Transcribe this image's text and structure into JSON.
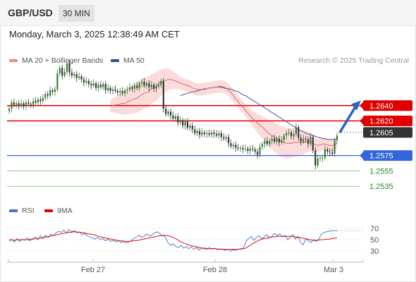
{
  "header": {
    "symbol": "GBP/USD",
    "timeframe": "30 MIN"
  },
  "date_text": "Monday, March 3, 2025 12:38:49 AM CET",
  "legend": {
    "ma20": "MA 20 + Bollinger Bands",
    "ma50": "MA 50",
    "copyright": "Research © 2025 Trading Central"
  },
  "rsi_legend": {
    "rsi": "RSI",
    "ma9": "9MA"
  },
  "colors": {
    "up": "#2e7d32",
    "down": "#333333",
    "ma20": "#e06666",
    "ma50": "#4a55a8",
    "band": "#fbd5d5",
    "resistance": "#e00000",
    "current": "#333333",
    "support_strong": "#3366dd",
    "support_weak": "#88cc88",
    "rsi": "#4472c4",
    "arrow": "#2c62c0"
  },
  "chart_data": [
    {
      "type": "candlestick",
      "x_labels": [
        "Feb 27",
        "Feb 28",
        "Mar 3"
      ],
      "ylim": [
        1.2515,
        1.2715
      ],
      "levels": [
        {
          "label": "1.2640",
          "value": 1.264,
          "style": "resistance"
        },
        {
          "label": "1.2620",
          "value": 1.262,
          "style": "resistance"
        },
        {
          "label": "1.2605",
          "value": 1.2605,
          "style": "current"
        },
        {
          "label": "1.2575",
          "value": 1.2575,
          "style": "support_strong"
        },
        {
          "label": "1.2555",
          "value": 1.2555,
          "style": "support_weak"
        },
        {
          "label": "1.2535",
          "value": 1.2535,
          "style": "support_weak"
        }
      ],
      "close": [
        1.2636,
        1.2644,
        1.2641,
        1.2643,
        1.264,
        1.2643,
        1.2639,
        1.2644,
        1.2642,
        1.2641,
        1.2646,
        1.2644,
        1.2648,
        1.2646,
        1.265,
        1.2655,
        1.2653,
        1.266,
        1.2658,
        1.2661,
        1.2682,
        1.2689,
        1.2679,
        1.2684,
        1.2695,
        1.2683,
        1.2679,
        1.2681,
        1.2676,
        1.2678,
        1.2674,
        1.267,
        1.2672,
        1.2668,
        1.2666,
        1.2669,
        1.2663,
        1.2667,
        1.2664,
        1.2668,
        1.266,
        1.2663,
        1.2659,
        1.2661,
        1.2659,
        1.2657,
        1.2659,
        1.2656,
        1.266,
        1.2661,
        1.2664,
        1.2662,
        1.2666,
        1.2663,
        1.2669,
        1.2671,
        1.2666,
        1.2669,
        1.2664,
        1.2667,
        1.2662,
        1.2665,
        1.2667,
        1.2672,
        1.2636,
        1.2629,
        1.2632,
        1.2627,
        1.2623,
        1.2626,
        1.2618,
        1.2621,
        1.2614,
        1.2619,
        1.2611,
        1.2614,
        1.2609,
        1.2604,
        1.2607,
        1.2602,
        1.2605,
        1.2603,
        1.2604,
        1.2602,
        1.2605,
        1.2603,
        1.2601,
        1.2604,
        1.2599,
        1.2597,
        1.2599,
        1.2591,
        1.2587,
        1.2589,
        1.2585,
        1.2584,
        1.2585,
        1.2583,
        1.2584,
        1.2581,
        1.2584,
        1.2583,
        1.258,
        1.2576,
        1.2586,
        1.259,
        1.2594,
        1.259,
        1.2594,
        1.2597,
        1.2593,
        1.2597,
        1.2592,
        1.2595,
        1.2601,
        1.2604,
        1.2605,
        1.26,
        1.2603,
        1.2612,
        1.2598,
        1.2593,
        1.2597,
        1.2596,
        1.259,
        1.2599,
        1.2582,
        1.2562,
        1.2571,
        1.2572,
        1.2572,
        1.2583,
        1.258,
        1.2579,
        1.2577,
        1.2595,
        1.2601
      ],
      "ma20": [
        1.2639,
        1.264,
        1.2641,
        1.2641,
        1.2642,
        1.2643,
        1.2643,
        1.2645,
        1.2646,
        1.2647,
        1.2649,
        1.265,
        1.2652,
        1.2654,
        1.2656,
        1.2657,
        1.2658,
        1.2662,
        1.2663,
        1.2665,
        1.2668,
        1.267,
        1.2672,
        1.2673,
        1.2674,
        1.2674,
        1.2673,
        1.2672,
        1.2671,
        1.2669,
        1.2668,
        1.2667,
        1.2666,
        1.2665,
        1.2663,
        1.2662,
        1.2661,
        1.2661,
        1.2661,
        1.2662,
        1.2662,
        1.2663,
        1.2663,
        1.2664,
        1.2664,
        1.2665,
        1.2665,
        1.2664,
        1.2663,
        1.266,
        1.2657,
        1.2653,
        1.2649,
        1.2645,
        1.2641,
        1.2638,
        1.2634,
        1.263,
        1.2627,
        1.2623,
        1.262,
        1.2617,
        1.2614,
        1.2612,
        1.2609,
        1.2606,
        1.2603,
        1.2601,
        1.2599,
        1.2597,
        1.2595,
        1.2593,
        1.2592,
        1.2591,
        1.2591,
        1.2591,
        1.2592,
        1.2592,
        1.2592,
        1.2592,
        1.2592,
        1.2593,
        1.2593,
        1.2593,
        1.2591,
        1.2589,
        1.2588,
        1.2589,
        1.259,
        1.259,
        1.2589,
        1.2588,
        1.2588,
        1.2589,
        1.2591
      ],
      "ma50": [
        1.2653,
        1.2654,
        1.2655,
        1.2656,
        1.2657,
        1.2658,
        1.2658,
        1.2659,
        1.266,
        1.2661,
        1.2661,
        1.2662,
        1.2663,
        1.2663,
        1.2664,
        1.2664,
        1.2664,
        1.2664,
        1.2663,
        1.2662,
        1.2662,
        1.2661,
        1.266,
        1.2659,
        1.2658,
        1.2656,
        1.2654,
        1.2653,
        1.2651,
        1.2649,
        1.2647,
        1.2645,
        1.2643,
        1.2641,
        1.2639,
        1.2637,
        1.2635,
        1.2633,
        1.2631,
        1.2629,
        1.2627,
        1.2625,
        1.2623,
        1.2621,
        1.2619,
        1.2617,
        1.2615,
        1.2613,
        1.2611,
        1.2609,
        1.2607,
        1.2606,
        1.2604,
        1.2603,
        1.2602,
        1.2601,
        1.26,
        1.2599,
        1.2598,
        1.2597,
        1.2597,
        1.2596,
        1.2596,
        1.2596,
        1.2596,
        1.2596
      ]
    },
    {
      "type": "line",
      "name": "RSI",
      "yticks": [
        70,
        50,
        30
      ],
      "ylim": [
        20,
        80
      ],
      "rsi": [
        48,
        50,
        46,
        52,
        47,
        51,
        49,
        53,
        48,
        52,
        55,
        50,
        57,
        52,
        58,
        54,
        60,
        57,
        62,
        65,
        63,
        67,
        62,
        68,
        64,
        66,
        62,
        64,
        59,
        61,
        57,
        55,
        53,
        51,
        54,
        50,
        52,
        48,
        51,
        47,
        49,
        46,
        48,
        45,
        47,
        44,
        46,
        49,
        52,
        55,
        58,
        54,
        57,
        60,
        56,
        59,
        62,
        64,
        60,
        58,
        55,
        45,
        40,
        43,
        38,
        36,
        40,
        35,
        38,
        34,
        37,
        33,
        36,
        32,
        35,
        34,
        33,
        36,
        33,
        35,
        32,
        34,
        33,
        31,
        33,
        30,
        32,
        31,
        33,
        34,
        35,
        47,
        52,
        56,
        49,
        54,
        57,
        51,
        55,
        59,
        53,
        56,
        61,
        57,
        60,
        55,
        58,
        50,
        54,
        59,
        51,
        56,
        45,
        41,
        52,
        48,
        45,
        50,
        47,
        51,
        60,
        63,
        64,
        65,
        66,
        66,
        66
      ],
      "ma9": [
        50,
        50,
        49,
        50,
        50,
        50,
        50,
        50,
        51,
        51,
        52,
        52,
        53,
        54,
        55,
        56,
        57,
        58,
        59,
        60,
        61,
        62,
        63,
        63,
        64,
        64,
        63,
        63,
        62,
        61,
        60,
        59,
        58,
        56,
        55,
        54,
        53,
        52,
        51,
        50,
        49,
        48,
        48,
        47,
        47,
        47,
        48,
        48,
        49,
        50,
        51,
        52,
        53,
        54,
        55,
        56,
        57,
        57,
        58,
        57,
        56,
        54,
        52,
        49,
        46,
        44,
        42,
        40,
        39,
        38,
        37,
        36,
        35,
        35,
        34,
        34,
        34,
        34,
        33,
        33,
        33,
        33,
        33,
        33,
        33,
        33,
        33,
        34,
        35,
        38,
        41,
        44,
        47,
        49,
        51,
        52,
        53,
        54,
        55,
        55,
        56,
        56,
        56,
        56,
        56,
        56,
        55,
        54,
        54,
        53,
        52,
        51,
        50,
        49,
        49,
        49,
        50,
        50,
        51,
        51,
        52,
        53,
        53
      ]
    }
  ]
}
